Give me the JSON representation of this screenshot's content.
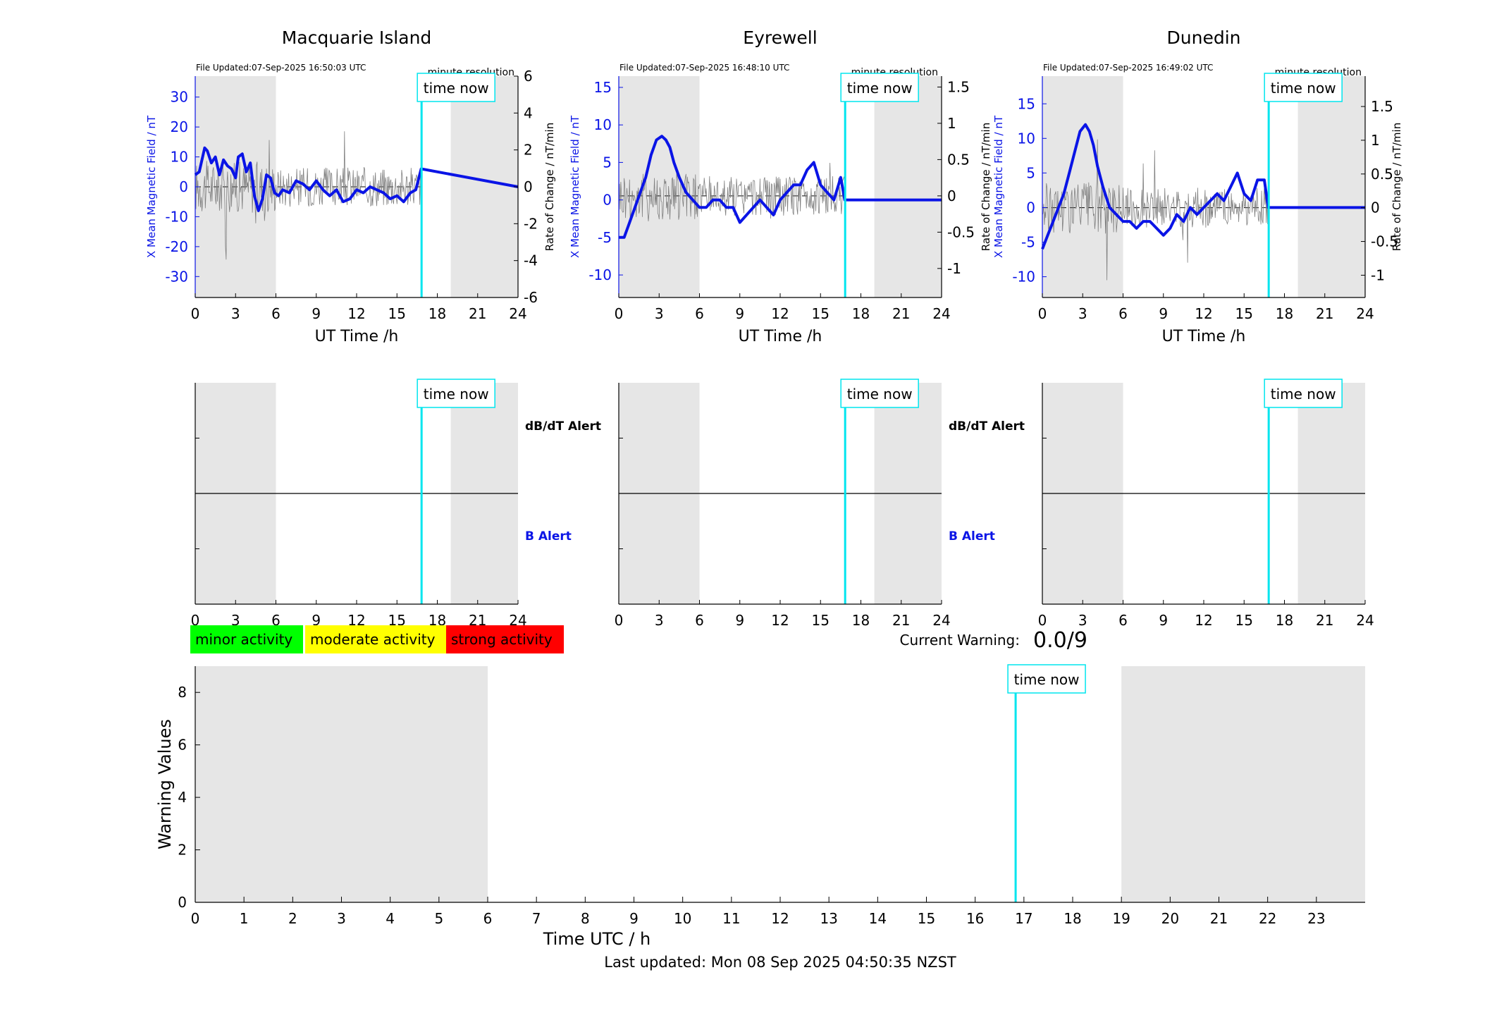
{
  "stations": [
    {
      "title": "Macquarie Island",
      "file_updated": "File Updated:07-Sep-2025 16:50:03 UTC",
      "resolution_label": "minute resolution",
      "time_now_label": "time now",
      "xlabel": "UT Time /h",
      "ylabel_left": "X Mean Magnetic Field / nT",
      "ylabel_right": "Rate of Change / nT/min",
      "y_left_ticks": [
        30,
        20,
        10,
        0,
        -10,
        -20,
        -30
      ],
      "y_right_ticks": [
        6,
        4,
        2,
        0,
        -2,
        -4,
        -6
      ],
      "x_ticks": [
        0,
        3,
        6,
        9,
        12,
        15,
        18,
        21,
        24
      ],
      "alert_labels": {
        "dbdt": "dB/dT Alert",
        "b": "B Alert"
      }
    },
    {
      "title": "Eyrewell",
      "file_updated": "File Updated:07-Sep-2025 16:48:10 UTC",
      "resolution_label": "minute resolution",
      "time_now_label": "time now",
      "xlabel": "UT Time /h",
      "ylabel_left": "X Mean Magnetic Field / nT",
      "ylabel_right": "",
      "y_left_ticks": [
        15,
        10,
        5,
        0,
        -5,
        -10
      ],
      "y_right_ticks": [
        "1.5",
        "1",
        "0.5",
        "0",
        "-0.5",
        "-1"
      ],
      "x_ticks": [
        0,
        3,
        6,
        9,
        12,
        15,
        18,
        21,
        24
      ],
      "alert_labels": {
        "dbdt": "dB/dT Alert",
        "b": "B Alert"
      }
    },
    {
      "title": "Dunedin",
      "file_updated": "File Updated:07-Sep-2025 16:49:02 UTC",
      "resolution_label": "minute resolution",
      "time_now_label": "time now",
      "xlabel": "UT Time /h",
      "ylabel_left": "X Mean Magnetic Field / nT",
      "ylabel_right": "Rate of Change / nT/min",
      "ylabel_left_extra": "Rate of Change / nT/min",
      "y_left_ticks": [
        15,
        10,
        5,
        0,
        -5,
        -10
      ],
      "y_right_ticks": [
        "1.5",
        "1",
        "0.5",
        "0",
        "-0.5",
        "-1"
      ],
      "x_ticks": [
        0,
        3,
        6,
        9,
        12,
        15,
        18,
        21,
        24
      ],
      "alert_labels": {
        "dbdt": "",
        "b": ""
      }
    }
  ],
  "legend": {
    "minor": "minor activity",
    "moderate": "moderate activity",
    "strong": "strong activity"
  },
  "current_warning": {
    "label": "Current Warning:",
    "value": "0.0/9"
  },
  "warning_panel": {
    "ylabel": "Warning Values",
    "xlabel": "Time UTC / h",
    "y_ticks": [
      8,
      6,
      4,
      2,
      0
    ],
    "x_ticks": [
      0,
      1,
      2,
      3,
      4,
      5,
      6,
      7,
      8,
      9,
      10,
      11,
      12,
      13,
      14,
      15,
      16,
      17,
      18,
      19,
      20,
      21,
      22,
      23
    ],
    "time_now_label": "time now"
  },
  "last_updated": "Last updated: Mon 08 Sep 2025 04:50:35 NZST",
  "colors": {
    "field_line": "#0a14e6",
    "rate_line": "#808080",
    "time_now": "#00e5ee",
    "shade": "#e6e6e6",
    "minor": "#00ff00",
    "moderate": "#ffff00",
    "strong": "#ff0000",
    "b_alert": "#0a14e6"
  },
  "chart_data": [
    {
      "type": "line",
      "station": "Macquarie Island",
      "xlim": [
        0,
        24
      ],
      "ylim_left": [
        -37,
        37
      ],
      "ylim_right": [
        -6,
        6
      ],
      "time_now_hour": 16.83,
      "shaded_hours": [
        [
          0,
          6
        ],
        [
          19,
          24
        ]
      ],
      "series": [
        {
          "axis": "left",
          "x": [
            0,
            0.3,
            0.7,
            0.9,
            1.2,
            1.5,
            1.8,
            2.1,
            2.4,
            2.7,
            3.0,
            3.2,
            3.5,
            3.8,
            4.1,
            4.4,
            4.7,
            5.0,
            5.3,
            5.6,
            5.9,
            6.2,
            6.5,
            7.0,
            7.5,
            8.0,
            8.5,
            9.0,
            9.5,
            10.0,
            10.5,
            11.0,
            11.5,
            12.0,
            12.5,
            13.0,
            13.5,
            14.0,
            14.5,
            15.0,
            15.5,
            16.0,
            16.4,
            16.8,
            24
          ],
          "y": [
            4,
            5,
            13,
            12,
            8,
            10,
            4,
            9,
            7,
            6,
            3,
            10,
            11,
            5,
            8,
            -3,
            -8,
            -4,
            4,
            3,
            -2,
            -3,
            -1,
            -2,
            2,
            1,
            -1,
            2,
            -1,
            -3,
            -1,
            -5,
            -4,
            -1,
            -2,
            0,
            -1,
            -2,
            -4,
            -3,
            -5,
            -2,
            -1,
            6,
            0
          ]
        },
        {
          "axis": "right",
          "x": [
            0,
            1,
            2,
            3,
            4,
            5,
            6,
            7,
            8,
            9,
            10,
            11,
            12,
            13,
            14,
            15,
            16,
            16.8,
            24
          ],
          "y": [
            0,
            0.2,
            -0.3,
            0.1,
            0.0,
            -0.2,
            0.1,
            0,
            0.1,
            -0.1,
            0.1,
            0,
            -0.1,
            0.2,
            -0.1,
            0.1,
            0,
            0.1,
            0
          ]
        }
      ]
    },
    {
      "type": "line",
      "station": "Eyrewell",
      "xlim": [
        0,
        24
      ],
      "ylim_left": [
        -13,
        16.5
      ],
      "ylim_right": [
        -1.4,
        1.65
      ],
      "time_now_hour": 16.83,
      "shaded_hours": [
        [
          0,
          6
        ],
        [
          19,
          24
        ]
      ],
      "series": [
        {
          "axis": "left",
          "x": [
            0,
            0.4,
            0.8,
            1.2,
            1.6,
            2.0,
            2.4,
            2.8,
            3.2,
            3.5,
            3.8,
            4.1,
            4.5,
            5.0,
            5.5,
            6.0,
            6.5,
            7.0,
            7.5,
            8.0,
            8.5,
            9.0,
            9.5,
            10.0,
            10.5,
            11.0,
            11.5,
            12.0,
            12.5,
            13.0,
            13.5,
            14.0,
            14.5,
            15.0,
            15.5,
            16.0,
            16.5,
            16.8,
            24
          ],
          "y": [
            -5,
            -5,
            -3,
            -1,
            1,
            3,
            6,
            8,
            8.5,
            8,
            7,
            5,
            3,
            1,
            0,
            -1,
            -1,
            0,
            0,
            -1,
            -1,
            -3,
            -2,
            -1,
            0,
            -1,
            -2,
            0,
            1,
            2,
            2,
            4,
            5,
            2,
            1,
            0,
            3,
            0,
            0
          ]
        },
        {
          "axis": "right",
          "x": [
            0,
            1,
            2,
            3,
            4,
            5,
            6,
            7,
            8,
            9,
            10,
            11,
            12,
            13,
            14,
            15,
            16,
            16.8,
            24
          ],
          "y": [
            0,
            0.1,
            0,
            0.05,
            0,
            -0.05,
            0,
            0.05,
            0,
            -0.05,
            0,
            0,
            0.05,
            0,
            0,
            0,
            0,
            0,
            0
          ]
        }
      ]
    },
    {
      "type": "line",
      "station": "Dunedin",
      "xlim": [
        0,
        24
      ],
      "ylim_left": [
        -13,
        19
      ],
      "ylim_right": [
        -1.33,
        1.95
      ],
      "time_now_hour": 16.83,
      "shaded_hours": [
        [
          0,
          6
        ],
        [
          19,
          24
        ]
      ],
      "series": [
        {
          "axis": "left",
          "x": [
            0,
            0.4,
            0.8,
            1.2,
            1.6,
            2.0,
            2.4,
            2.8,
            3.2,
            3.5,
            3.8,
            4.1,
            4.5,
            5.0,
            5.5,
            6.0,
            6.5,
            7.0,
            7.5,
            8.0,
            8.5,
            9.0,
            9.5,
            10.0,
            10.5,
            11.0,
            11.5,
            12.0,
            12.5,
            13.0,
            13.5,
            14.0,
            14.5,
            15.0,
            15.5,
            16.0,
            16.5,
            16.8,
            24
          ],
          "y": [
            -6,
            -4,
            -2,
            0,
            2,
            5,
            8,
            11,
            12,
            11,
            9,
            6,
            3,
            0,
            -1,
            -2,
            -2,
            -3,
            -2,
            -2,
            -3,
            -4,
            -3,
            -1,
            -2,
            0,
            -1,
            0,
            1,
            2,
            1,
            3,
            5,
            2,
            1,
            4,
            4,
            0,
            0
          ]
        },
        {
          "axis": "right",
          "x": [
            0,
            1,
            2,
            3,
            4,
            5,
            6,
            7,
            8,
            9,
            10,
            11,
            12,
            13,
            14,
            15,
            16,
            16.8,
            24
          ],
          "y": [
            0,
            0.05,
            0,
            0.05,
            0,
            -0.05,
            0,
            0,
            0,
            0,
            0,
            0,
            0,
            0,
            0,
            0,
            0,
            0,
            0
          ]
        }
      ]
    },
    {
      "type": "bar",
      "title": "",
      "xlabel": "Time UTC / h",
      "ylabel": "Warning Values",
      "xlim": [
        0,
        24
      ],
      "ylim": [
        0,
        9
      ],
      "time_now_hour": 16.83,
      "shaded_hours": [
        [
          0,
          6
        ],
        [
          19,
          24
        ]
      ],
      "values": []
    }
  ]
}
